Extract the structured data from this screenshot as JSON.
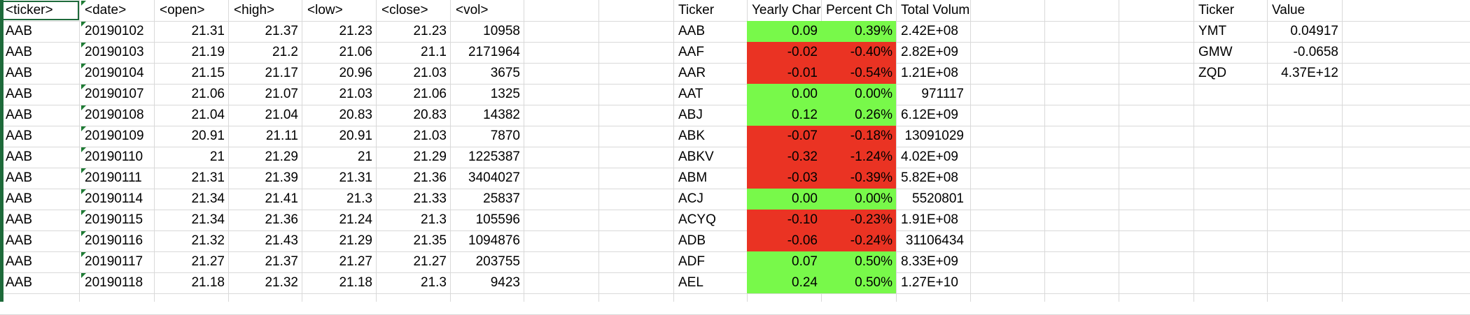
{
  "raw": {
    "headers": [
      "<ticker>",
      "<date>",
      "<open>",
      "<high>",
      "<low>",
      "<close>",
      "<vol>"
    ],
    "rows": [
      [
        "AAB",
        "20190102",
        "21.31",
        "21.37",
        "21.23",
        "21.23",
        "10958"
      ],
      [
        "AAB",
        "20190103",
        "21.19",
        "21.2",
        "21.06",
        "21.1",
        "2171964"
      ],
      [
        "AAB",
        "20190104",
        "21.15",
        "21.17",
        "20.96",
        "21.03",
        "3675"
      ],
      [
        "AAB",
        "20190107",
        "21.06",
        "21.07",
        "21.03",
        "21.06",
        "1325"
      ],
      [
        "AAB",
        "20190108",
        "21.04",
        "21.04",
        "20.83",
        "20.83",
        "14382"
      ],
      [
        "AAB",
        "20190109",
        "20.91",
        "21.11",
        "20.91",
        "21.03",
        "7870"
      ],
      [
        "AAB",
        "20190110",
        "21",
        "21.29",
        "21",
        "21.29",
        "1225387"
      ],
      [
        "AAB",
        "20190111",
        "21.31",
        "21.39",
        "21.31",
        "21.36",
        "3404027"
      ],
      [
        "AAB",
        "20190114",
        "21.34",
        "21.41",
        "21.3",
        "21.33",
        "25837"
      ],
      [
        "AAB",
        "20190115",
        "21.34",
        "21.36",
        "21.24",
        "21.3",
        "105596"
      ],
      [
        "AAB",
        "20190116",
        "21.32",
        "21.43",
        "21.29",
        "21.35",
        "1094876"
      ],
      [
        "AAB",
        "20190117",
        "21.27",
        "21.37",
        "21.27",
        "21.27",
        "203755"
      ],
      [
        "AAB",
        "20190118",
        "21.18",
        "21.32",
        "21.18",
        "21.3",
        "9423"
      ]
    ]
  },
  "summary": {
    "headers": [
      "Ticker",
      "Yearly Char",
      "Percent Ch",
      "Total Volume"
    ],
    "rows": [
      {
        "ticker": "AAB",
        "yearly": "0.09",
        "percent": "0.39%",
        "volume": "2.42E+08",
        "status": "positive"
      },
      {
        "ticker": "AAF",
        "yearly": "-0.02",
        "percent": "-0.40%",
        "volume": "2.82E+09",
        "status": "negative"
      },
      {
        "ticker": "AAR",
        "yearly": "-0.01",
        "percent": "-0.54%",
        "volume": "1.21E+08",
        "status": "negative"
      },
      {
        "ticker": "AAT",
        "yearly": "0.00",
        "percent": "0.00%",
        "volume": "971117",
        "status": "positive"
      },
      {
        "ticker": "ABJ",
        "yearly": "0.12",
        "percent": "0.26%",
        "volume": "6.12E+09",
        "status": "positive"
      },
      {
        "ticker": "ABK",
        "yearly": "-0.07",
        "percent": "-0.18%",
        "volume": "13091029",
        "status": "negative"
      },
      {
        "ticker": "ABKV",
        "yearly": "-0.32",
        "percent": "-1.24%",
        "volume": "4.02E+09",
        "status": "negative"
      },
      {
        "ticker": "ABM",
        "yearly": "-0.03",
        "percent": "-0.39%",
        "volume": "5.82E+08",
        "status": "negative"
      },
      {
        "ticker": "ACJ",
        "yearly": "0.00",
        "percent": "0.00%",
        "volume": "5520801",
        "status": "positive"
      },
      {
        "ticker": "ACYQ",
        "yearly": "-0.10",
        "percent": "-0.23%",
        "volume": "1.91E+08",
        "status": "negative"
      },
      {
        "ticker": "ADB",
        "yearly": "-0.06",
        "percent": "-0.24%",
        "volume": "31106434",
        "status": "negative"
      },
      {
        "ticker": "ADF",
        "yearly": "0.07",
        "percent": "0.50%",
        "volume": "8.33E+09",
        "status": "positive"
      },
      {
        "ticker": "AEL",
        "yearly": "0.24",
        "percent": "0.50%",
        "volume": "1.27E+10",
        "status": "positive"
      }
    ]
  },
  "greatest": {
    "headers": [
      "Ticker",
      "Value"
    ],
    "rows": [
      {
        "ticker": "YMT",
        "value": "0.04917"
      },
      {
        "ticker": "GMW",
        "value": "-0.0658"
      },
      {
        "ticker": "ZQD",
        "value": "4.37E+12"
      }
    ]
  },
  "colors": {
    "positive": "#78f94a",
    "negative": "#ea3323",
    "grid": "#d9d9d9",
    "selection": "#1e6a3a"
  }
}
